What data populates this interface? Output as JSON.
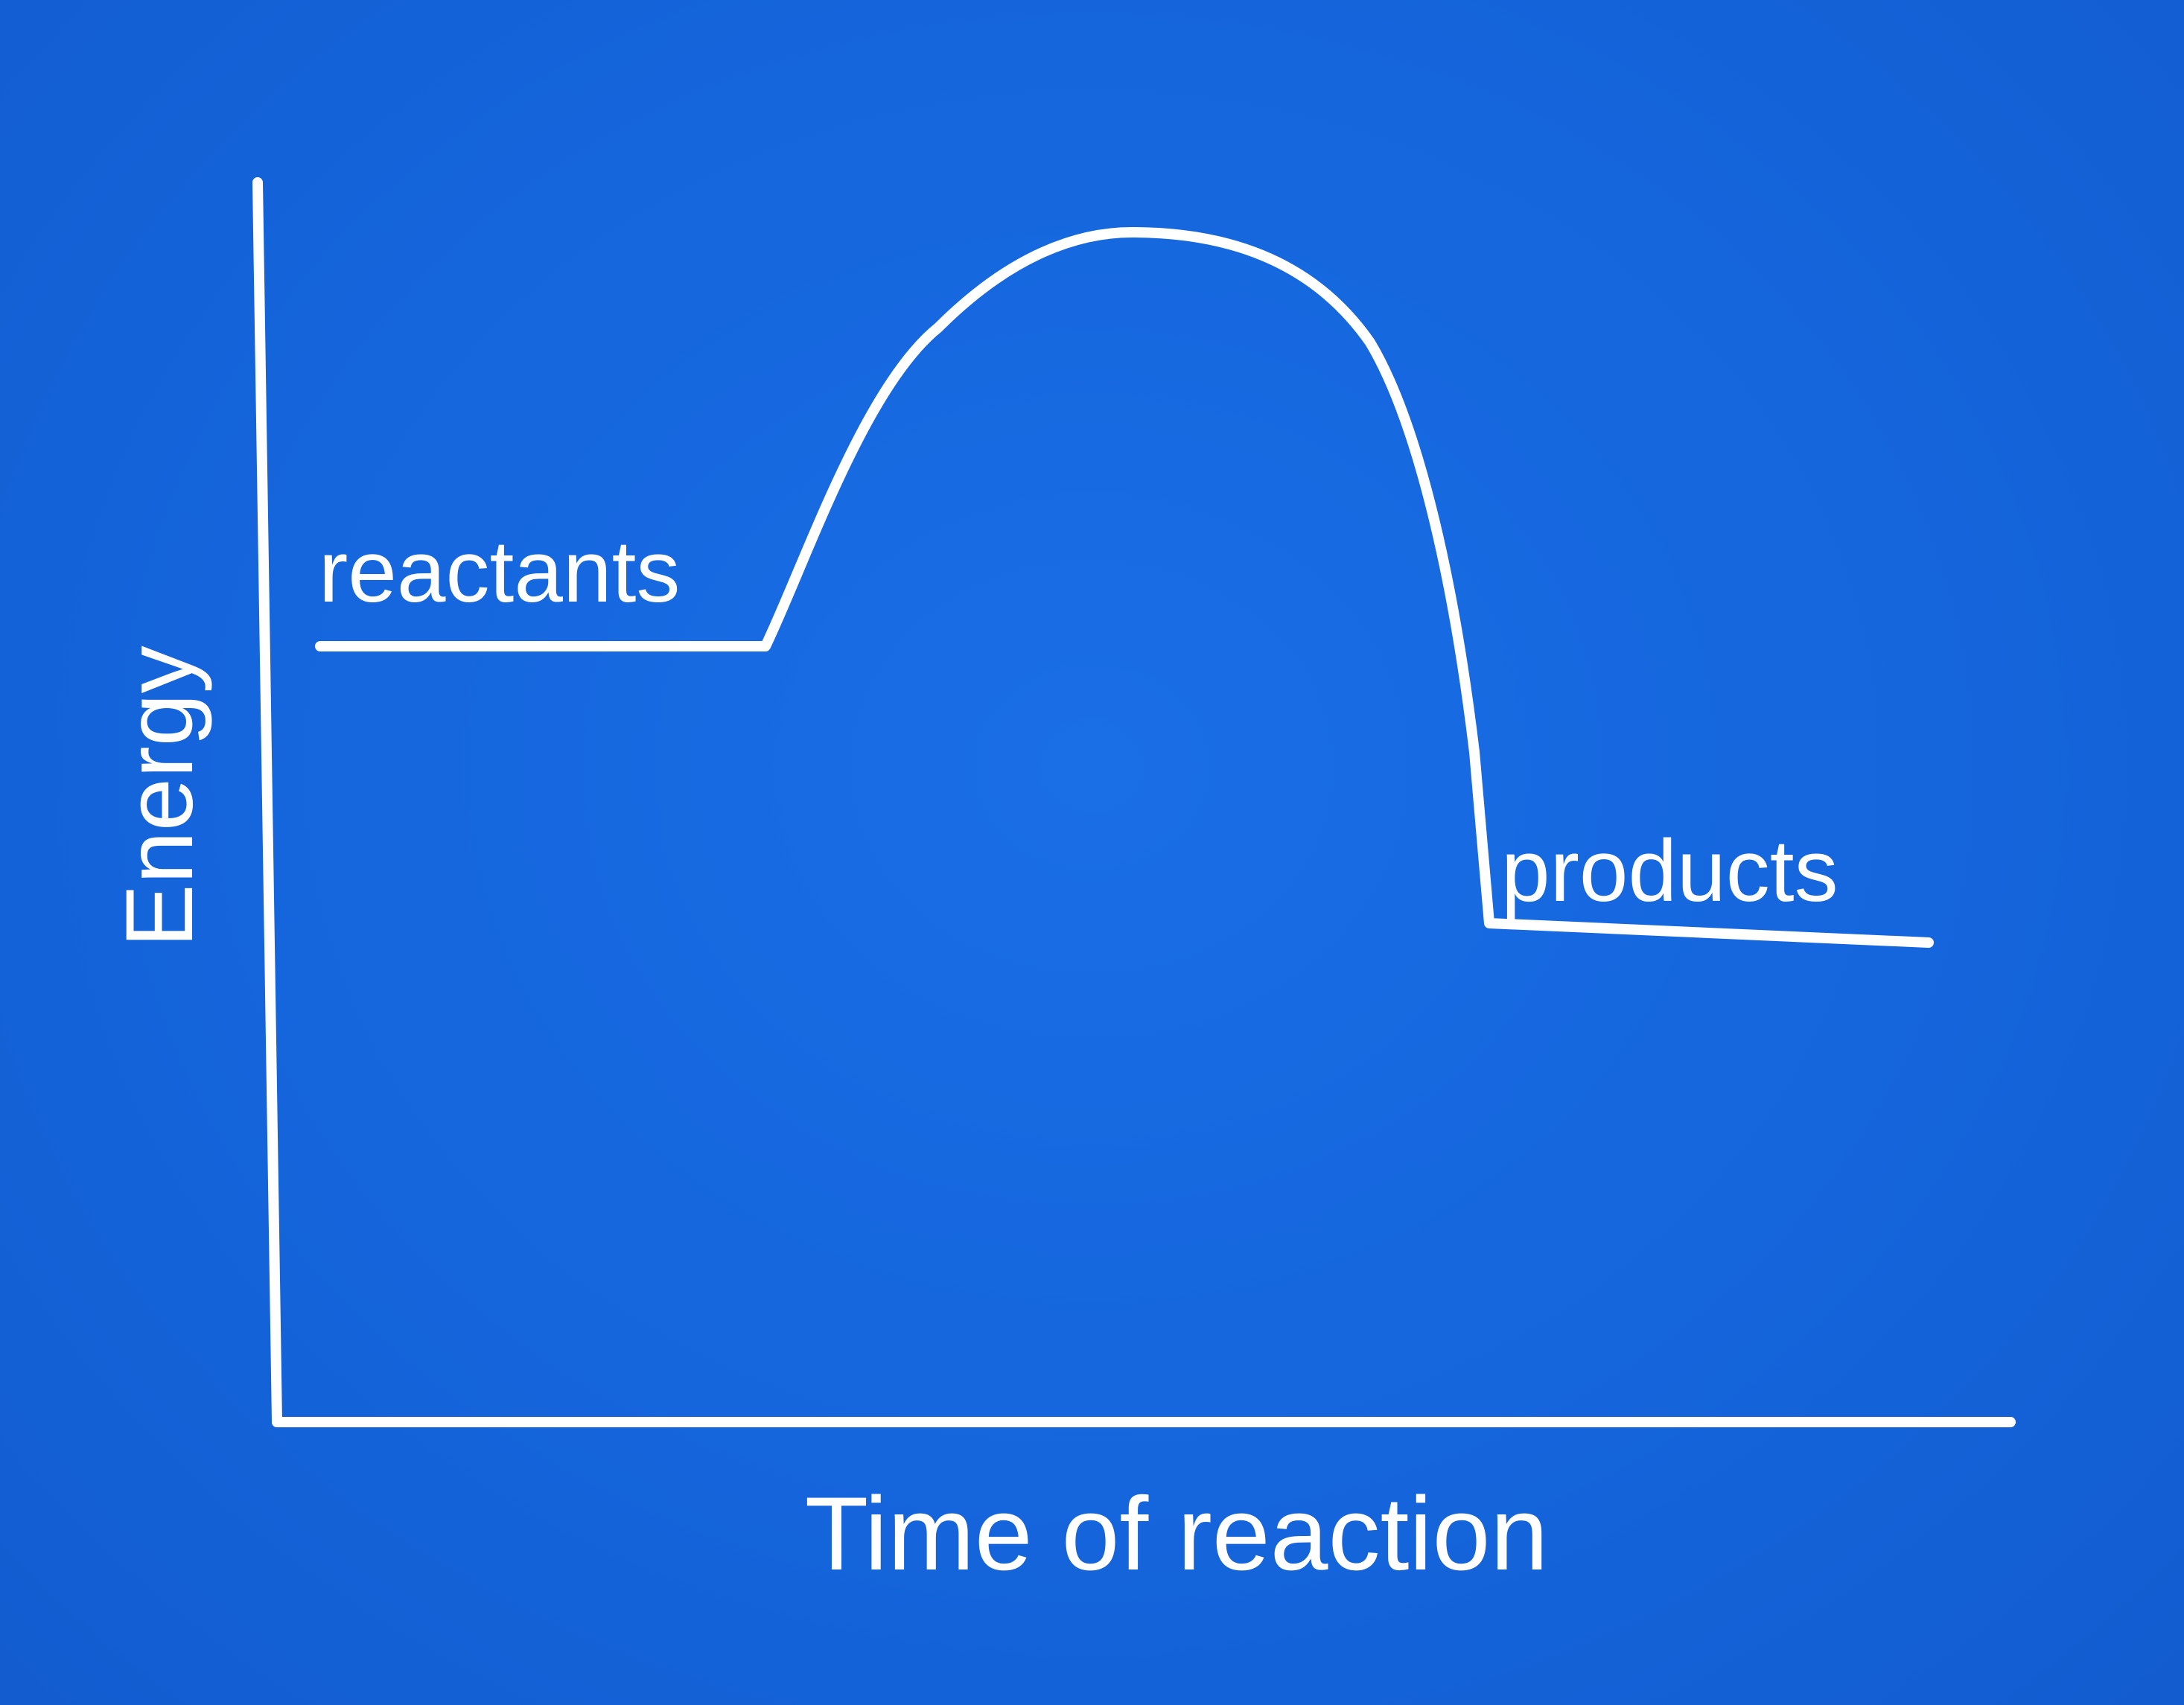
{
  "diagram": {
    "y_axis_label": "Energy",
    "x_axis_label": "Time of reaction",
    "curve_labels": {
      "start": "reactants",
      "end": "products"
    }
  },
  "colors": {
    "background": "#1668de",
    "foreground": "#ffffff"
  }
}
